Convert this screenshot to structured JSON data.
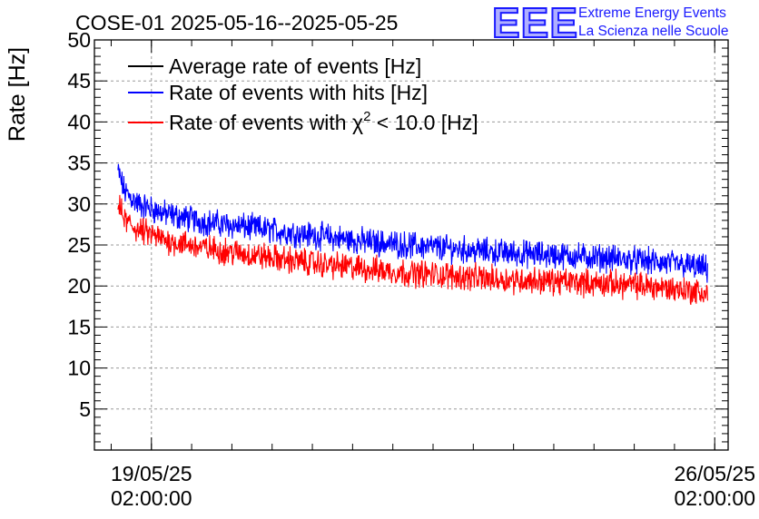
{
  "title": "COSE-01 2025-05-16--2025-05-25",
  "logo": {
    "mark": "EEE",
    "line1": "Extreme Energy Events",
    "line2": "La Scienza nelle Scuole",
    "color": "#1a1aff"
  },
  "chart_data": {
    "type": "line",
    "ylabel": "Rate [Hz]",
    "xlabel": "",
    "ylim": [
      0,
      50
    ],
    "yticks": [
      5,
      10,
      15,
      20,
      25,
      30,
      35,
      40,
      45,
      50
    ],
    "xlim": [
      "2025-05-18T09:00:00",
      "2025-05-26T06:00:00"
    ],
    "xticks": [
      {
        "x": "2025-05-19T02:00:00",
        "date": "19/05/25",
        "time": "02:00:00"
      },
      {
        "x": "2025-05-26T02:00:00",
        "date": "26/05/25",
        "time": "02:00:00"
      }
    ],
    "grid": true,
    "legend_position": "top-left",
    "series": [
      {
        "name": "Average rate of events [Hz]",
        "color": "#000000",
        "x": [],
        "y": []
      },
      {
        "name": "Rate of events with hits [Hz]",
        "color": "#0000ff",
        "x": [
          "2025-05-18T16:00",
          "2025-05-18T18:00",
          "2025-05-18T22:00",
          "2025-05-19T06:00",
          "2025-05-19T18:00",
          "2025-05-20T06:00",
          "2025-05-20T18:00",
          "2025-05-21T06:00",
          "2025-05-21T18:00",
          "2025-05-22T06:00",
          "2025-05-22T18:00",
          "2025-05-23T06:00",
          "2025-05-23T18:00",
          "2025-05-24T06:00",
          "2025-05-24T18:00",
          "2025-05-25T06:00",
          "2025-05-25T18:00",
          "2025-05-26T00:00"
        ],
        "y": [
          34.0,
          31.5,
          30.0,
          28.8,
          27.8,
          27.2,
          26.6,
          26.0,
          25.4,
          25.0,
          24.6,
          24.2,
          23.9,
          23.7,
          23.4,
          23.0,
          22.5,
          22.0
        ]
      },
      {
        "name": "Rate of events with χ² < 10.0 [Hz]",
        "name_parts": [
          "Rate of events with ",
          "χ",
          "2",
          " < 10.0 [Hz]"
        ],
        "color": "#ff0000",
        "x": [
          "2025-05-18T16:00",
          "2025-05-18T18:00",
          "2025-05-18T22:00",
          "2025-05-19T06:00",
          "2025-05-19T18:00",
          "2025-05-20T06:00",
          "2025-05-20T18:00",
          "2025-05-21T06:00",
          "2025-05-21T18:00",
          "2025-05-22T06:00",
          "2025-05-22T18:00",
          "2025-05-23T06:00",
          "2025-05-23T18:00",
          "2025-05-24T06:00",
          "2025-05-24T18:00",
          "2025-05-25T06:00",
          "2025-05-25T18:00",
          "2025-05-26T00:00"
        ],
        "y": [
          30.0,
          28.0,
          26.8,
          25.6,
          24.6,
          23.9,
          23.2,
          22.6,
          22.1,
          21.6,
          21.3,
          20.9,
          20.7,
          20.5,
          20.3,
          20.0,
          19.5,
          19.0
        ]
      }
    ]
  }
}
